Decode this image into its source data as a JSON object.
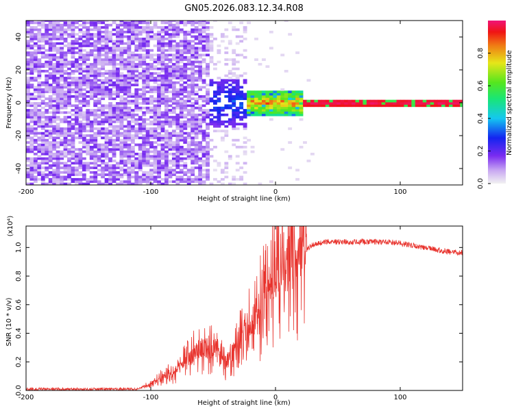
{
  "title": "GN05.2026.083.12.34.R08",
  "colors": {
    "line": "#e8332d",
    "background": "#ffffff",
    "axis": "#000000"
  },
  "chart_data": [
    {
      "type": "heatmap",
      "title": "GN05.2026.083.12.34.R08",
      "xlabel": "Height of straight line (km)",
      "ylabel": "Frequency (Hz)",
      "xlim": [
        -200,
        150
      ],
      "ylim": [
        -50,
        50
      ],
      "xticks": [
        -200,
        -100,
        0,
        100
      ],
      "yticks": [
        -40,
        -20,
        0,
        20,
        40
      ],
      "colorbar": {
        "label": "Normalized spectral amplitude",
        "range": [
          0,
          1
        ],
        "ticks": [
          "0.0",
          "0.2",
          "0.4",
          "0.6",
          "0.8"
        ],
        "colormap": "rainbow (violet-blue-cyan-green-yellow-red-magenta)"
      },
      "regions": [
        {
          "x_range": [
            -200,
            -55
          ],
          "f_range": [
            -50,
            50
          ],
          "amplitude": [
            0.05,
            0.15
          ],
          "description": "broadband noise"
        },
        {
          "x_range": [
            -55,
            -25
          ],
          "f_range": [
            -15,
            15
          ],
          "amplitude": [
            0.1,
            0.35
          ],
          "description": "widening transition"
        },
        {
          "x_range": [
            -25,
            20
          ],
          "f_range": [
            -8,
            8
          ],
          "amplitude": [
            0.3,
            0.95
          ],
          "description": "emerging tone"
        },
        {
          "x_range": [
            20,
            150
          ],
          "f_range": [
            -2,
            2
          ],
          "amplitude": [
            0.9,
            1.0
          ],
          "description": "steady tone near 0 Hz"
        }
      ]
    },
    {
      "type": "line",
      "xlabel": "Height of straight line (km)",
      "ylabel": "SNR (10 * v/v)",
      "scale_label": "(x10⁴)",
      "xlim": [
        -200,
        150
      ],
      "ylim": [
        0,
        1.15
      ],
      "xticks": [
        -200,
        -100,
        0,
        100
      ],
      "yticks": [
        0.0,
        0.2,
        0.4,
        0.6,
        0.8,
        1.0
      ],
      "series": [
        {
          "name": "SNR",
          "points": [
            [
              -200,
              0.01
            ],
            [
              -150,
              0.01
            ],
            [
              -110,
              0.01
            ],
            [
              -100,
              0.05
            ],
            [
              -90,
              0.1
            ],
            [
              -80,
              0.14
            ],
            [
              -70,
              0.22
            ],
            [
              -60,
              0.3
            ],
            [
              -50,
              0.28
            ],
            [
              -40,
              0.2
            ],
            [
              -30,
              0.32
            ],
            [
              -20,
              0.45
            ],
            [
              -10,
              0.62
            ],
            [
              0,
              0.82
            ],
            [
              5,
              0.92
            ],
            [
              10,
              0.88
            ],
            [
              20,
              0.95
            ],
            [
              30,
              1.02
            ],
            [
              40,
              1.04
            ],
            [
              50,
              1.04
            ],
            [
              70,
              1.04
            ],
            [
              90,
              1.04
            ],
            [
              100,
              1.03
            ],
            [
              120,
              1.0
            ],
            [
              140,
              0.97
            ],
            [
              150,
              0.96
            ]
          ]
        }
      ]
    }
  ]
}
